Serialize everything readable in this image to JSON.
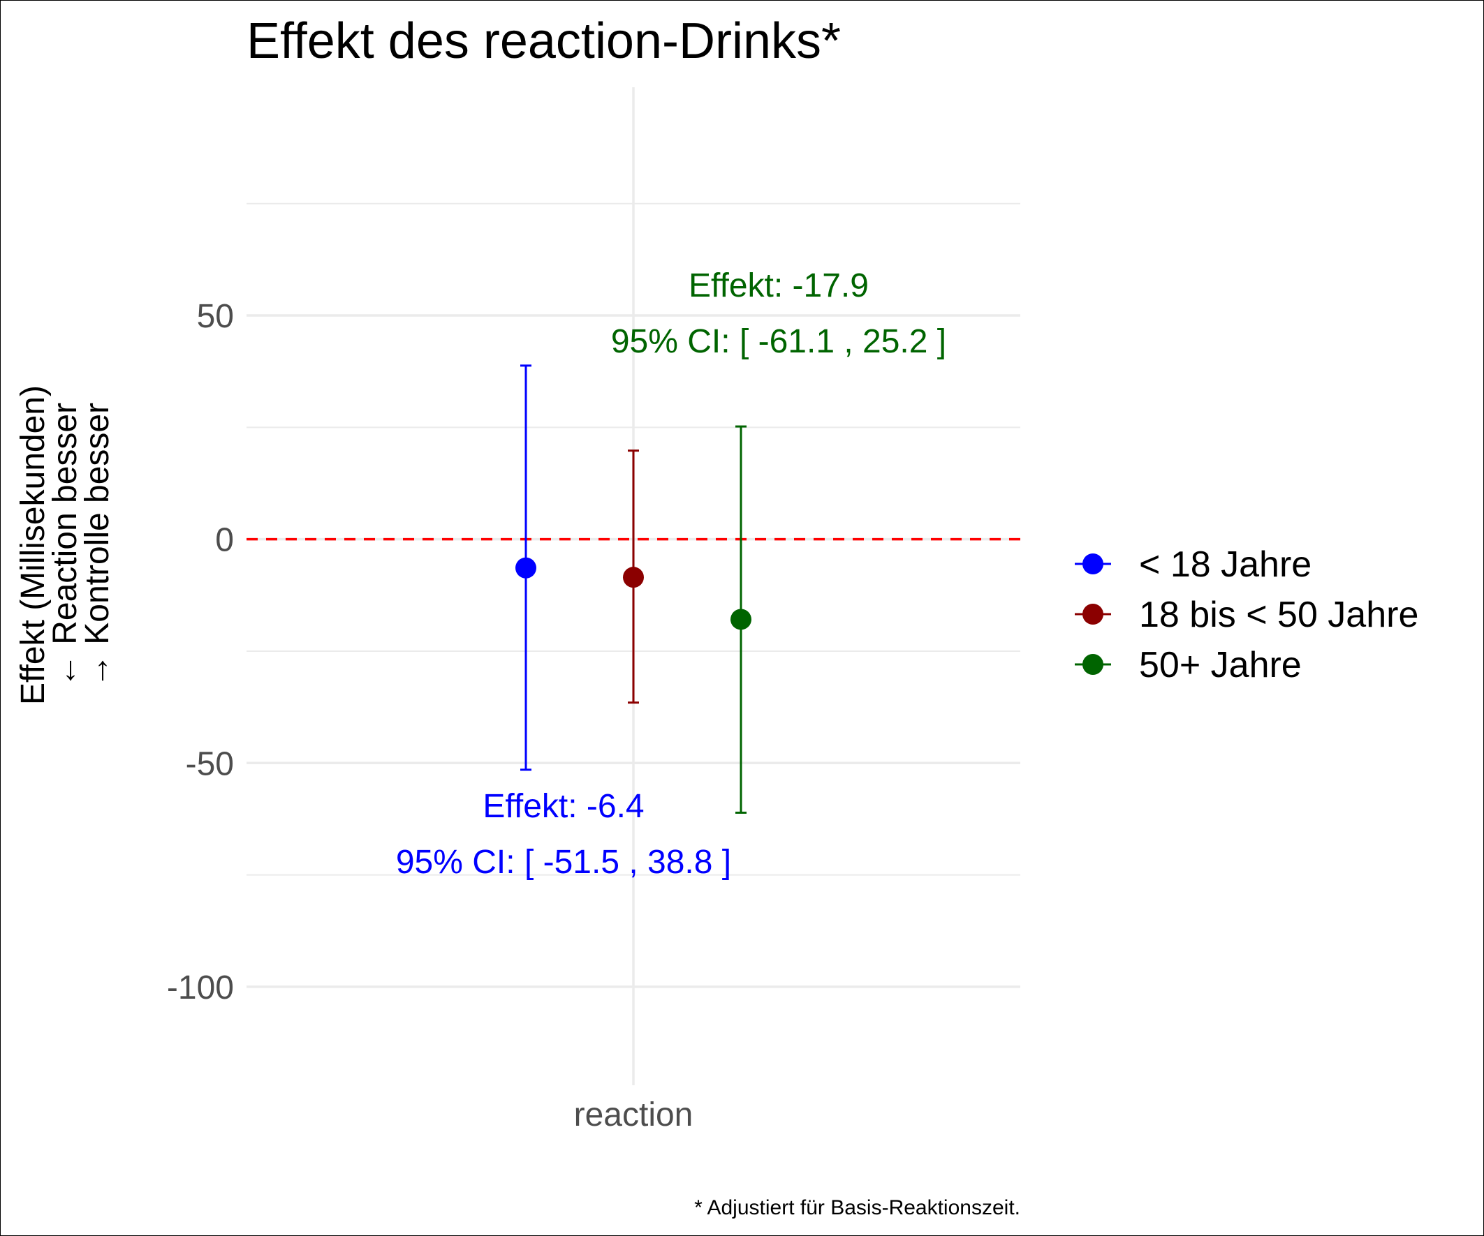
{
  "chart_data": {
    "type": "scatter",
    "subtype": "point-with-errorbars",
    "title": "Effekt des reaction-Drinks*",
    "caption": "* Adjustiert für Basis-Reaktionszeit.",
    "xlabel": "",
    "ylabel_lines": [
      "Effekt (Millisekunden)",
      "← Reaction besser",
      "→ Kontrolle besser"
    ],
    "categories": [
      "reaction"
    ],
    "ylim": [
      -122,
      101
    ],
    "y_ticks": [
      -100,
      -50,
      0,
      50
    ],
    "y_tick_labels": [
      "-100",
      "-50",
      "0",
      "50"
    ],
    "reference_line": {
      "y": 0,
      "style": "dashed",
      "color": "#ff0000"
    },
    "grid": true,
    "legend_position": "right",
    "series": [
      {
        "name": "< 18 Jahre",
        "color": "#0000ff",
        "category": "reaction",
        "dodge": -1,
        "estimate": -6.4,
        "ci_low": -51.5,
        "ci_high": 38.8
      },
      {
        "name": "18 bis < 50 Jahre",
        "color": "#8b0000",
        "category": "reaction",
        "dodge": 0,
        "estimate": -8.5,
        "ci_low": -36.5,
        "ci_high": 19.8
      },
      {
        "name": "50+ Jahre",
        "color": "#006400",
        "category": "reaction",
        "dodge": 1,
        "estimate": -17.9,
        "ci_low": -61.1,
        "ci_high": 25.2
      }
    ],
    "annotations": [
      {
        "series": 0,
        "lines": [
          "Effekt: -6.4",
          "95% CI: [ -51.5 , 38.8 ]"
        ],
        "color": "#0000ff",
        "position": "below"
      },
      {
        "series": 2,
        "lines": [
          "Effekt: -17.9",
          "95% CI: [ -61.1 , 25.2 ]"
        ],
        "color": "#006400",
        "position": "above"
      }
    ]
  }
}
